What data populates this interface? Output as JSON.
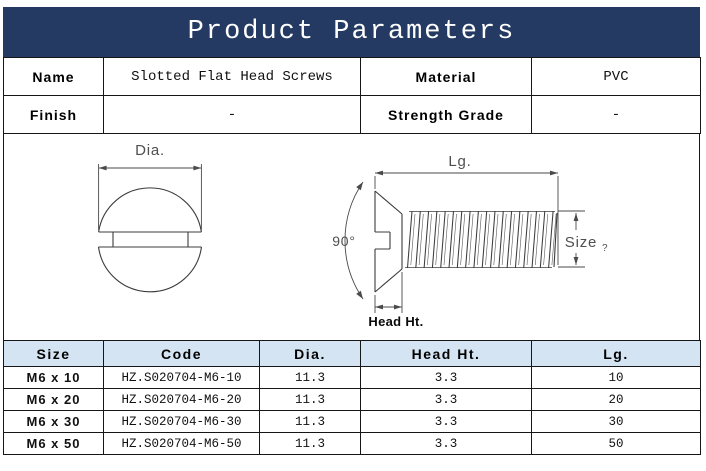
{
  "banner": {
    "title": "Product Parameters"
  },
  "info_table": {
    "rows": [
      {
        "label1": "Name",
        "value1": "Slotted Flat Head Screws",
        "label2": "Material",
        "value2": "PVC"
      },
      {
        "label1": "Finish",
        "value1": "-",
        "label2": "Strength Grade",
        "value2": "-"
      }
    ]
  },
  "diagram": {
    "labels": {
      "dia": "Dia.",
      "lg": "Lg.",
      "angle": "90°",
      "size": "Size",
      "size_sub": "?",
      "head_ht": "Head Ht."
    }
  },
  "spec_table": {
    "headers": [
      "Size",
      "Code",
      "Dia.",
      "Head Ht.",
      "Lg."
    ],
    "rows": [
      [
        "M6 x 10",
        "HZ.S020704-M6-10",
        "11.3",
        "3.3",
        "10"
      ],
      [
        "M6 x 20",
        "HZ.S020704-M6-20",
        "11.3",
        "3.3",
        "20"
      ],
      [
        "M6 x 30",
        "HZ.S020704-M6-30",
        "11.3",
        "3.3",
        "30"
      ],
      [
        "M6 x 50",
        "HZ.S020704-M6-50",
        "11.3",
        "3.3",
        "50"
      ]
    ]
  },
  "colors": {
    "banner_bg": "#243A63",
    "spec_header_bg": "#D4E4F2",
    "border": "#161616",
    "cad_line": "#3c3c3c",
    "dim_text": "#4f4f4f"
  }
}
